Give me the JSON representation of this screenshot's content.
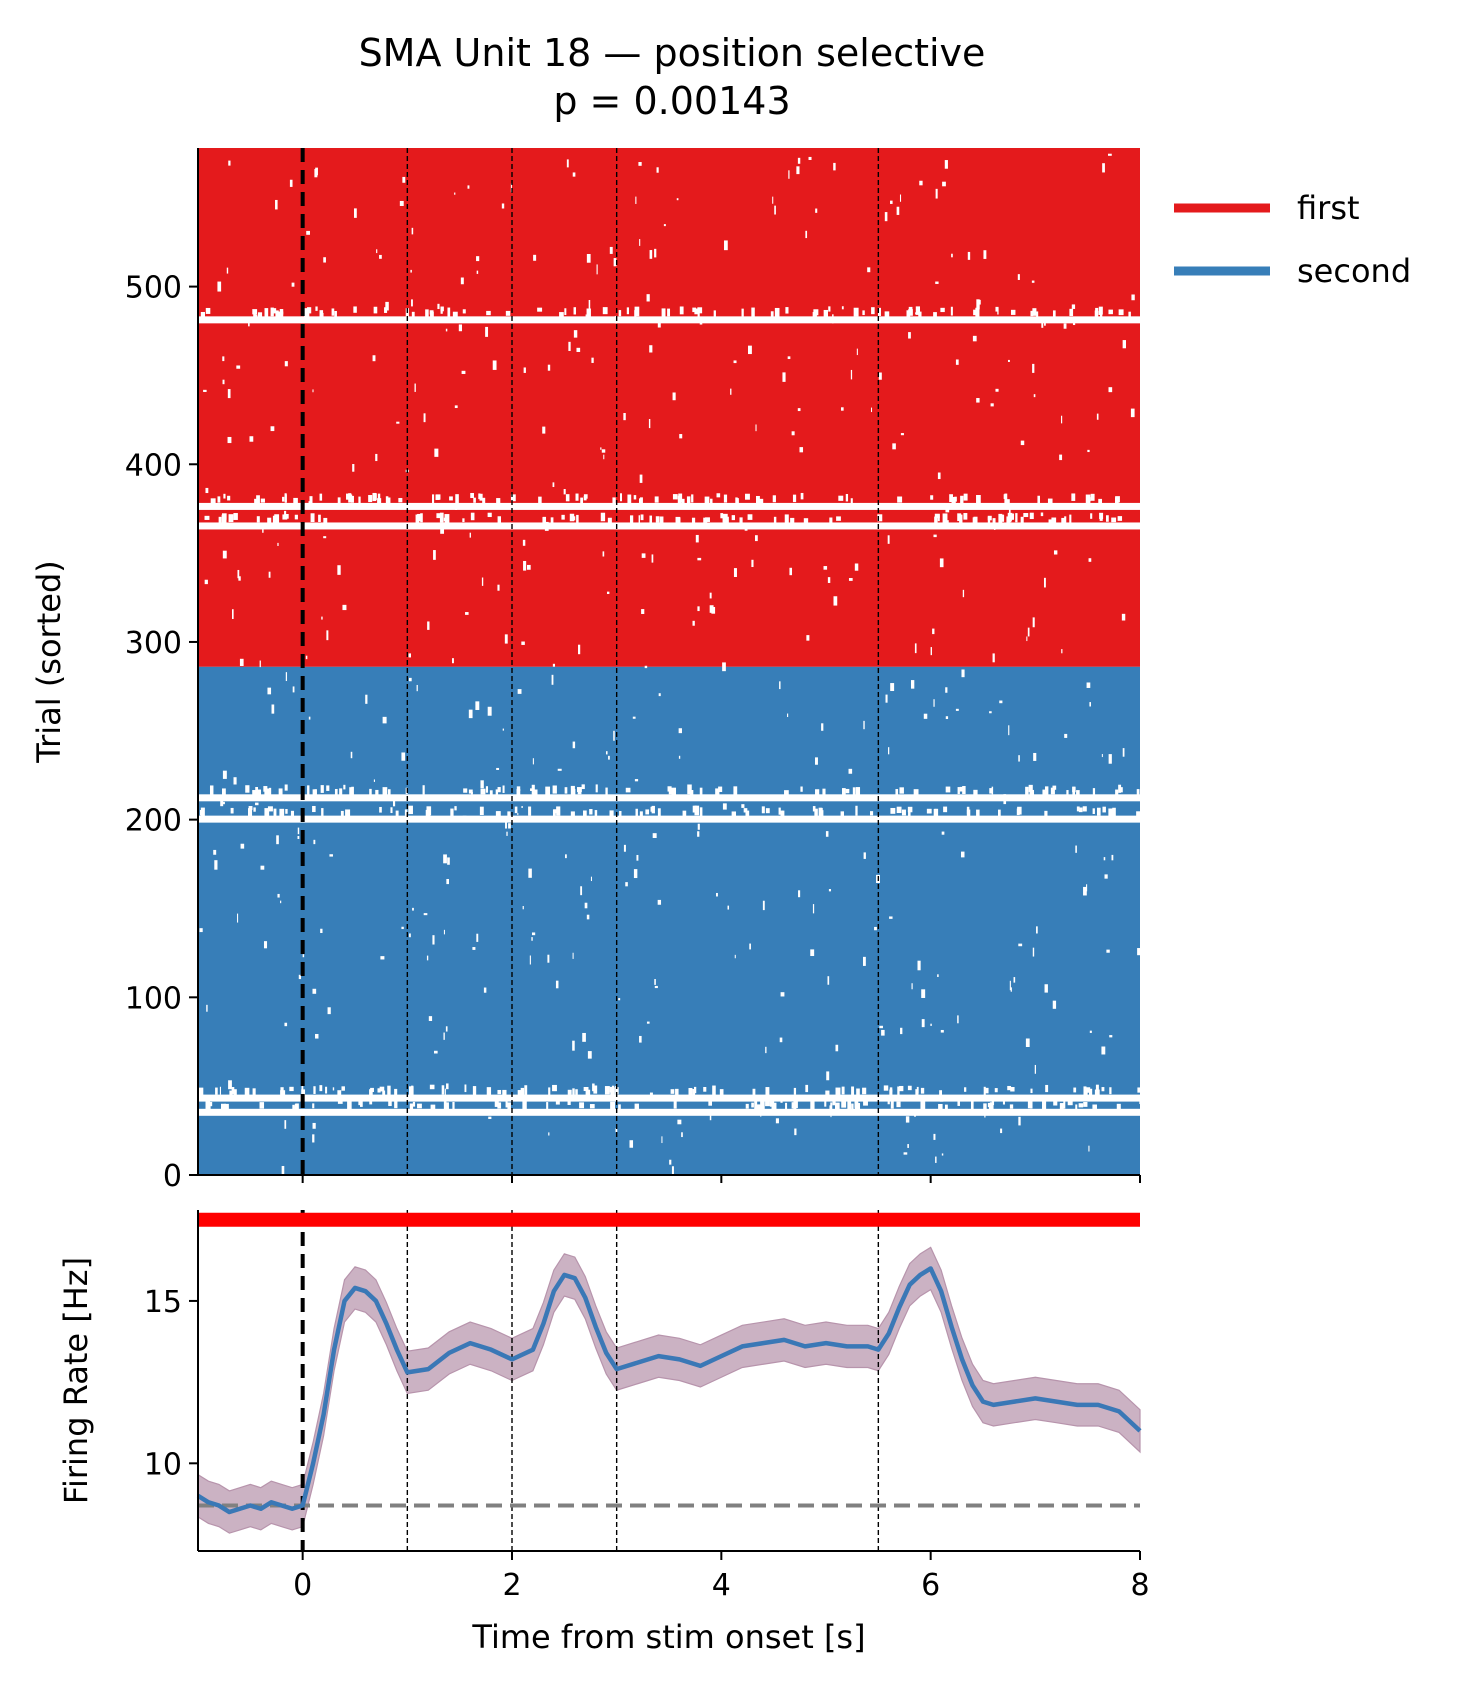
{
  "figure": {
    "title_line1": "SMA Unit 18 — position selective",
    "title_line2": "p = 0.00143"
  },
  "chart_data": [
    {
      "type": "raster",
      "panel": "top",
      "xlim": [
        -1,
        8
      ],
      "ylim": [
        0,
        578
      ],
      "ylabel": "Trial (sorted)",
      "yticks": [
        0,
        100,
        200,
        300,
        400,
        500
      ],
      "series": [
        {
          "name": "first",
          "color": "#e41a1c",
          "trials": [
            286,
            578
          ]
        },
        {
          "name": "second",
          "color": "#377eb8",
          "trials": [
            0,
            286
          ]
        }
      ],
      "gaps_trials": [
        {
          "series": "first",
          "trial": 481
        },
        {
          "series": "first",
          "trial": 365
        },
        {
          "series": "first",
          "trial": 376
        },
        {
          "series": "second",
          "trial": 200
        },
        {
          "series": "second",
          "trial": 212
        },
        {
          "series": "second",
          "trial": 35
        },
        {
          "series": "second",
          "trial": 43
        }
      ],
      "stim_onset": 0,
      "event_lines": [
        1,
        2,
        3,
        5.5
      ],
      "legend": {
        "placement": "outside-top-right",
        "entries": [
          "first",
          "second"
        ]
      }
    },
    {
      "type": "line",
      "panel": "bottom",
      "xlim": [
        -1,
        8
      ],
      "ylim": [
        7.3,
        17.8
      ],
      "xlabel": "Time from stim onset [s]",
      "ylabel": "Firing Rate [Hz]",
      "xticks": [
        0,
        2,
        4,
        6,
        8
      ],
      "yticks": [
        10,
        15
      ],
      "baseline": 8.7,
      "significance_bar": {
        "x": [
          -1,
          8
        ],
        "y": 17.5,
        "color": "#ff0000"
      },
      "stim_onset": 0,
      "event_lines": [
        1,
        2,
        3,
        5.5
      ],
      "series": [
        {
          "color": "#3a78b6",
          "band_color": "#c9aec0",
          "x": [
            -1,
            -0.9,
            -0.8,
            -0.7,
            -0.6,
            -0.5,
            -0.4,
            -0.3,
            -0.2,
            -0.1,
            0,
            0.1,
            0.2,
            0.3,
            0.4,
            0.5,
            0.6,
            0.7,
            0.8,
            0.9,
            1.0,
            1.2,
            1.4,
            1.6,
            1.8,
            2.0,
            2.2,
            2.3,
            2.4,
            2.5,
            2.6,
            2.7,
            2.8,
            2.9,
            3.0,
            3.2,
            3.4,
            3.6,
            3.8,
            4.0,
            4.2,
            4.4,
            4.6,
            4.8,
            5.0,
            5.2,
            5.4,
            5.5,
            5.6,
            5.7,
            5.8,
            5.9,
            6.0,
            6.1,
            6.2,
            6.3,
            6.4,
            6.5,
            6.6,
            6.8,
            7.0,
            7.2,
            7.4,
            7.6,
            7.8,
            8.0
          ],
          "y": [
            9.0,
            8.8,
            8.7,
            8.5,
            8.6,
            8.7,
            8.6,
            8.8,
            8.7,
            8.6,
            8.7,
            10.0,
            11.5,
            13.5,
            15.0,
            15.4,
            15.3,
            15.0,
            14.3,
            13.5,
            12.8,
            12.9,
            13.4,
            13.7,
            13.5,
            13.2,
            13.5,
            14.3,
            15.3,
            15.8,
            15.7,
            15.1,
            14.2,
            13.4,
            12.9,
            13.1,
            13.3,
            13.2,
            13.0,
            13.3,
            13.6,
            13.7,
            13.8,
            13.6,
            13.7,
            13.6,
            13.6,
            13.5,
            14.0,
            14.8,
            15.5,
            15.8,
            16.0,
            15.3,
            14.2,
            13.2,
            12.4,
            11.9,
            11.8,
            11.9,
            12.0,
            11.9,
            11.8,
            11.8,
            11.6,
            11.0
          ],
          "band_halfwidth": 0.65
        }
      ]
    }
  ]
}
